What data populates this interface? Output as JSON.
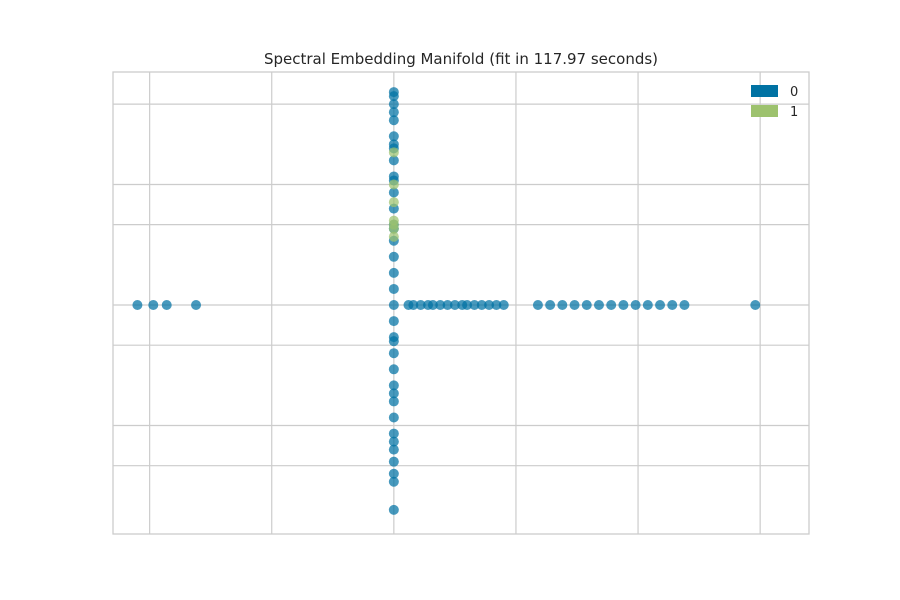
{
  "chart_data": {
    "type": "scatter",
    "title": "Spectral Embedding Manifold (fit in 117.97 seconds)",
    "xlabel": "",
    "ylabel": "",
    "xlim": [
      -2.3,
      3.4
    ],
    "ylim": [
      -2.85,
      2.9
    ],
    "grid": true,
    "tick_labels_visible": false,
    "legend": {
      "placement": "top-right",
      "entries": [
        "0",
        "1"
      ]
    },
    "colors": {
      "0": "#0072a3",
      "1": "#9dc26e",
      "grid": "#cccccc",
      "frame": "#cccccc",
      "title": "#262626"
    },
    "series": [
      {
        "name": "0",
        "x": [
          -2.1,
          -1.97,
          -1.86,
          -1.62,
          0.0,
          0.0,
          0.0,
          0.0,
          0.0,
          0.0,
          0.0,
          0.0,
          0.0,
          0.0,
          0.0,
          0.0,
          0.0,
          0.0,
          0.0,
          0.0,
          0.0,
          0.0,
          0.0,
          0.0,
          0.0,
          0.0,
          0.0,
          0.0,
          0.0,
          0.0,
          0.0,
          0.0,
          0.0,
          0.0,
          0.0,
          0.0,
          0.0,
          0.0,
          0.0,
          0.0,
          0.12,
          0.16,
          0.22,
          0.28,
          0.32,
          0.38,
          0.44,
          0.5,
          0.56,
          0.6,
          0.66,
          0.72,
          0.78,
          0.84,
          0.9,
          1.18,
          1.28,
          1.38,
          1.48,
          1.58,
          1.68,
          1.78,
          1.88,
          1.98,
          2.08,
          2.18,
          2.28,
          2.38,
          2.96
        ],
        "y": [
          0.0,
          0.0,
          0.0,
          0.0,
          2.65,
          2.5,
          2.3,
          2.1,
          1.95,
          1.8,
          1.6,
          1.4,
          1.2,
          1.0,
          0.8,
          0.6,
          0.4,
          0.2,
          0.0,
          -0.2,
          -0.4,
          -0.6,
          -0.8,
          -1.0,
          -1.2,
          -1.4,
          -1.6,
          -1.8,
          -1.95,
          -2.1,
          -2.2,
          -2.55,
          2.6,
          2.4,
          2.0,
          1.55,
          0.95,
          -0.45,
          -1.1,
          -1.7,
          0.0,
          0.0,
          0.0,
          0.0,
          0.0,
          0.0,
          0.0,
          0.0,
          0.0,
          0.0,
          0.0,
          0.0,
          0.0,
          0.0,
          0.0,
          0.0,
          0.0,
          0.0,
          0.0,
          0.0,
          0.0,
          0.0,
          0.0,
          0.0,
          0.0,
          0.0,
          0.0,
          0.0,
          0.0
        ]
      },
      {
        "name": "1",
        "x": [
          0.0,
          0.0,
          0.0,
          0.0,
          0.0,
          0.0,
          0.0
        ],
        "y": [
          1.9,
          1.5,
          1.28,
          1.05,
          1.0,
          0.95,
          0.85
        ]
      }
    ]
  }
}
